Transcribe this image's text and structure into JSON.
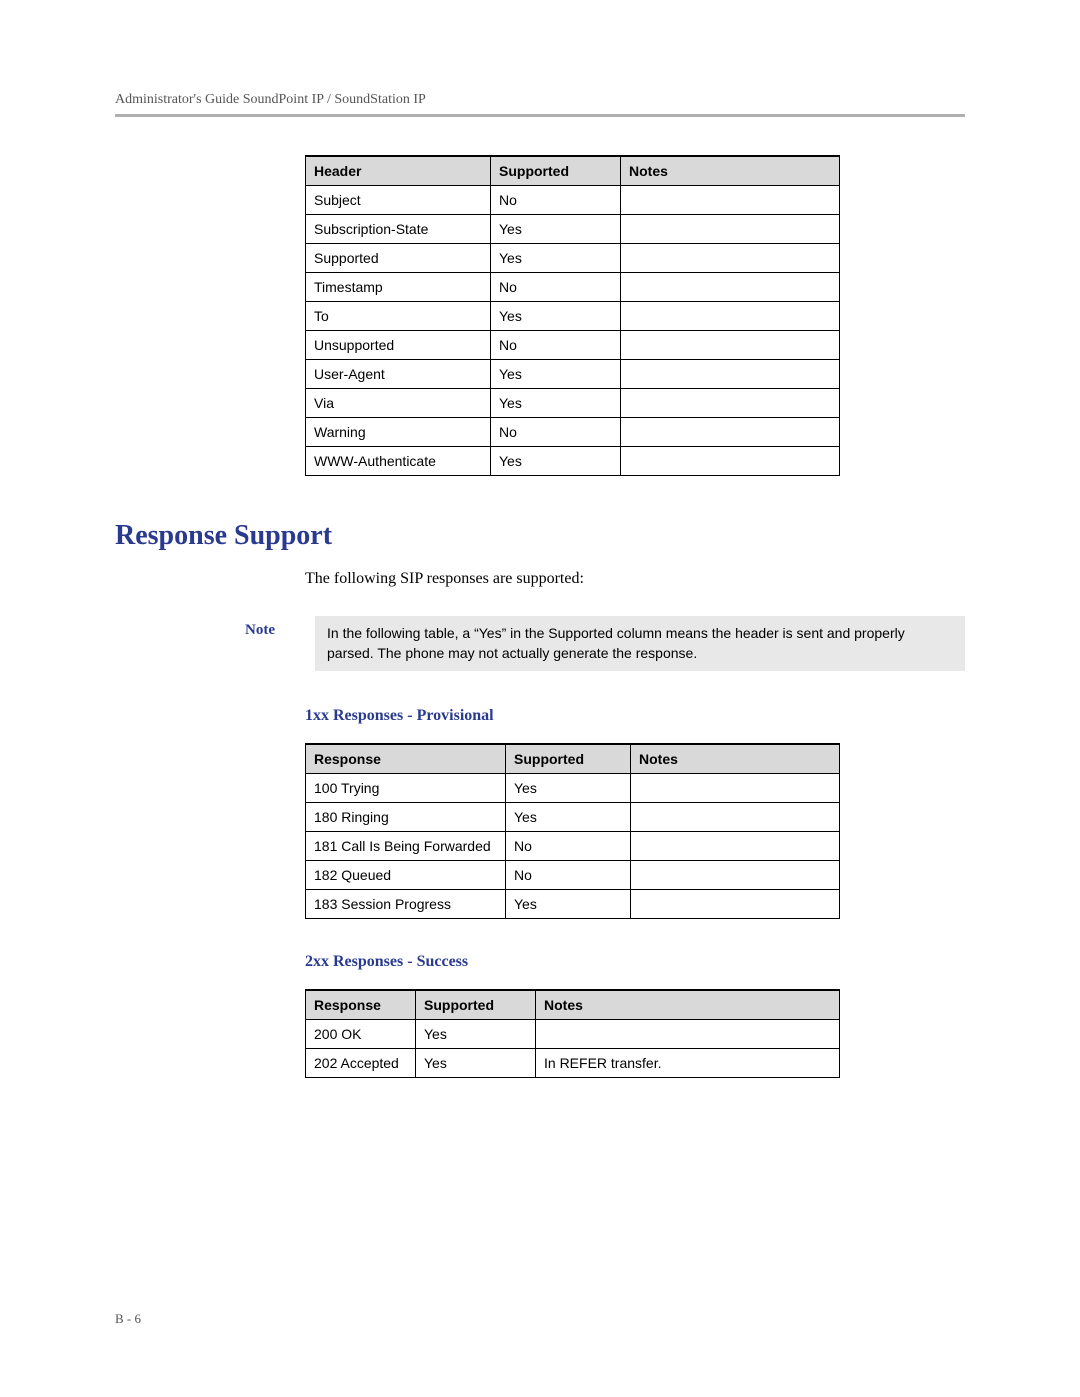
{
  "doc_header": "Administrator's Guide SoundPoint IP / SoundStation IP",
  "header_table": {
    "columns": [
      "Header",
      "Supported",
      "Notes"
    ],
    "col_widths": [
      "185px",
      "130px",
      "auto"
    ],
    "rows": [
      [
        "Subject",
        "No",
        ""
      ],
      [
        "Subscription-State",
        "Yes",
        ""
      ],
      [
        "Supported",
        "Yes",
        ""
      ],
      [
        "Timestamp",
        "No",
        ""
      ],
      [
        "To",
        "Yes",
        ""
      ],
      [
        "Unsupported",
        "No",
        ""
      ],
      [
        "User-Agent",
        "Yes",
        ""
      ],
      [
        "Via",
        "Yes",
        ""
      ],
      [
        "Warning",
        "No",
        ""
      ],
      [
        "WWW-Authenticate",
        "Yes",
        ""
      ]
    ]
  },
  "section_title": "Response Support",
  "intro_text": "The following SIP responses are supported:",
  "note": {
    "label": "Note",
    "body": "In the following table, a “Yes” in the Supported column means the header is sent and properly parsed. The phone may not actually generate the response."
  },
  "sub1": {
    "title": "1xx Responses - Provisional",
    "columns": [
      "Response",
      "Supported",
      "Notes"
    ],
    "col_widths": [
      "200px",
      "125px",
      "auto"
    ],
    "rows": [
      [
        "100 Trying",
        "Yes",
        ""
      ],
      [
        "180 Ringing",
        "Yes",
        ""
      ],
      [
        "181 Call Is Being Forwarded",
        "No",
        ""
      ],
      [
        "182 Queued",
        "No",
        ""
      ],
      [
        "183 Session Progress",
        "Yes",
        ""
      ]
    ]
  },
  "sub2": {
    "title": "2xx Responses - Success",
    "columns": [
      "Response",
      "Supported",
      "Notes"
    ],
    "col_widths": [
      "110px",
      "120px",
      "auto"
    ],
    "rows": [
      [
        "200 OK",
        "Yes",
        ""
      ],
      [
        "202 Accepted",
        "Yes",
        "In REFER transfer."
      ]
    ]
  },
  "footer": "B - 6",
  "colors": {
    "heading": "#2a3b8f",
    "rule": "#b0b0b0",
    "th_bg": "#d9d9d9",
    "note_bg": "#e8e8e8"
  }
}
